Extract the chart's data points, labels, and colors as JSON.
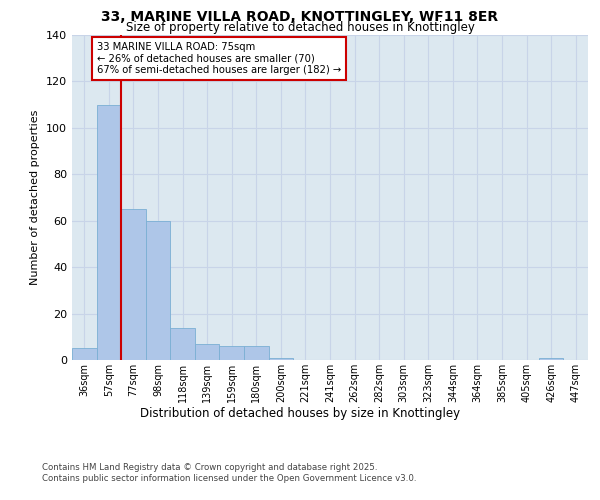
{
  "title": "33, MARINE VILLA ROAD, KNOTTINGLEY, WF11 8ER",
  "subtitle": "Size of property relative to detached houses in Knottingley",
  "xlabel": "Distribution of detached houses by size in Knottingley",
  "ylabel": "Number of detached properties",
  "bar_labels": [
    "36sqm",
    "57sqm",
    "77sqm",
    "98sqm",
    "118sqm",
    "139sqm",
    "159sqm",
    "180sqm",
    "200sqm",
    "221sqm",
    "241sqm",
    "262sqm",
    "282sqm",
    "303sqm",
    "323sqm",
    "344sqm",
    "364sqm",
    "385sqm",
    "405sqm",
    "426sqm",
    "447sqm"
  ],
  "bar_values": [
    5,
    110,
    65,
    60,
    14,
    7,
    6,
    6,
    1,
    0,
    0,
    0,
    0,
    0,
    0,
    0,
    0,
    0,
    0,
    1,
    0
  ],
  "bar_color": "#aec6e8",
  "bar_edge_color": "#7aafd4",
  "vline_x_index": 2,
  "vline_color": "#cc0000",
  "annotation_text": "33 MARINE VILLA ROAD: 75sqm\n← 26% of detached houses are smaller (70)\n67% of semi-detached houses are larger (182) →",
  "annotation_box_color": "#ffffff",
  "annotation_box_edge_color": "#cc0000",
  "ylim": [
    0,
    140
  ],
  "yticks": [
    0,
    20,
    40,
    60,
    80,
    100,
    120,
    140
  ],
  "grid_color": "#c8d4e8",
  "background_color": "#dce8f0",
  "fig_background": "#ffffff",
  "footer_line1": "Contains HM Land Registry data © Crown copyright and database right 2025.",
  "footer_line2": "Contains public sector information licensed under the Open Government Licence v3.0."
}
